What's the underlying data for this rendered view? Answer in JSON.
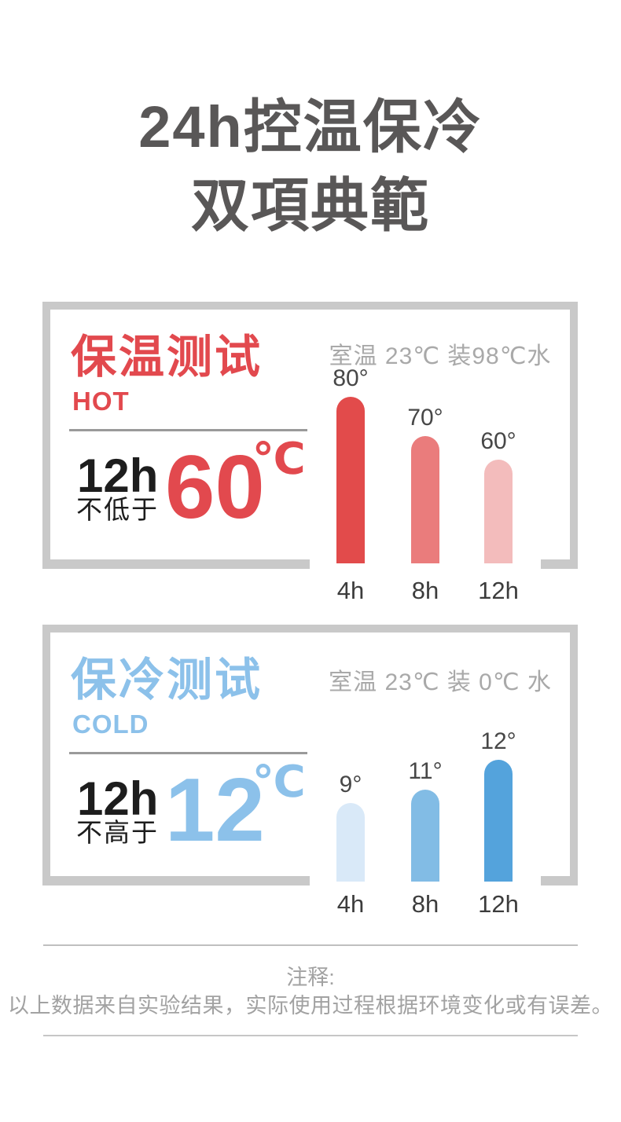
{
  "title": {
    "line1": "24h控温保冷",
    "line2": "双項典範"
  },
  "hot": {
    "name": "保温测试",
    "tag": "HOT",
    "duration": "12h",
    "condition": "不低于",
    "temp_value": "60",
    "temp_unit": "℃",
    "chart_note": "室温 23℃ 装98℃水"
  },
  "cold": {
    "name": "保冷测试",
    "tag": "COLD",
    "duration": "12h",
    "condition": "不高于",
    "temp_value": "12",
    "temp_unit": "℃",
    "chart_note": "室温 23℃ 装 0℃ 水"
  },
  "footer": {
    "label": "注释:",
    "text": "以上数据来自实验结果，实际使用过程根据环境变化或有误差。"
  },
  "colors": {
    "title_text": "#595757",
    "accent_hot": "#e2494e",
    "accent_cold": "#8cc1ea",
    "panel_border": "#c9c9c9",
    "divider": "#9a9a9a",
    "chart_note_text": "#a9a9a9",
    "note_text": "#a2a2a2"
  },
  "chart_data": [
    {
      "id": "hot",
      "type": "bar",
      "title": "保温测试 HOT",
      "subtitle": "室温 23℃ 装98℃水",
      "categories": [
        "4h",
        "8h",
        "12h"
      ],
      "values": [
        80,
        70,
        60
      ],
      "value_labels": [
        "80°",
        "70°",
        "60°"
      ],
      "unit": "°C",
      "xlabel": "",
      "ylabel": "",
      "bar_colors": [
        "#e24b4b",
        "#ea7c7c",
        "#f3bcbc"
      ],
      "legend": "none",
      "grid": false,
      "summary": "12h 不低于 60℃"
    },
    {
      "id": "cold",
      "type": "bar",
      "title": "保冷测试 COLD",
      "subtitle": "室温 23℃ 装 0℃ 水",
      "categories": [
        "4h",
        "8h",
        "12h"
      ],
      "values": [
        9,
        11,
        12
      ],
      "value_labels": [
        "9°",
        "11°",
        "12°"
      ],
      "unit": "°C",
      "xlabel": "",
      "ylabel": "",
      "bar_colors": [
        "#d9e9f8",
        "#82bce5",
        "#54a3dc"
      ],
      "legend": "none",
      "grid": false,
      "summary": "12h 不高于 12℃"
    }
  ]
}
